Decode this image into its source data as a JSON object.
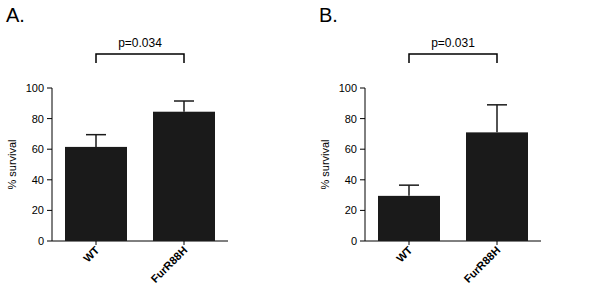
{
  "chart_data": [
    {
      "type": "bar",
      "title": "A.",
      "annotation": "p=0.034",
      "y_label": "% survival",
      "categories": [
        "WT",
        "FurR88H"
      ],
      "values": [
        61.5,
        84.5
      ],
      "errors": [
        8,
        7
      ],
      "color": "#1a1a1a",
      "ylim": [
        0,
        100
      ],
      "yticks": [
        0,
        20,
        40,
        60,
        80,
        100
      ]
    },
    {
      "type": "bar",
      "title": "B.",
      "annotation": "p=0.031",
      "y_label": "% survival",
      "categories": [
        "WT",
        "FurR88H"
      ],
      "values": [
        29.5,
        71
      ],
      "errors": [
        7,
        18
      ],
      "color": "#1a1a1a",
      "ylim": [
        0,
        100
      ],
      "yticks": [
        0,
        20,
        40,
        60,
        80,
        100
      ]
    }
  ]
}
